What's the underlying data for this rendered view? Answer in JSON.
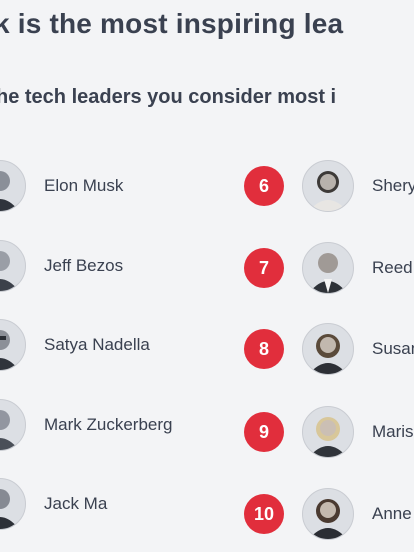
{
  "header": {
    "title": "k is the most inspiring lea",
    "subtitle": "he tech leaders you consider most i"
  },
  "chart_data": {
    "type": "table",
    "columns": [
      "rank",
      "name"
    ],
    "rows": [
      {
        "rank": "",
        "name": "Elon Musk"
      },
      {
        "rank": "",
        "name": "Jeff Bezos"
      },
      {
        "rank": "",
        "name": "Satya Nadella"
      },
      {
        "rank": "",
        "name": "Mark Zuckerberg"
      },
      {
        "rank": "",
        "name": "Jack Ma"
      },
      {
        "rank": "6",
        "name": "Shery"
      },
      {
        "rank": "7",
        "name": "Reed"
      },
      {
        "rank": "8",
        "name": "Susan"
      },
      {
        "rank": "9",
        "name": "Maris"
      },
      {
        "rank": "10",
        "name": "Anne"
      }
    ]
  },
  "colors": {
    "accent": "#e12e3c",
    "background": "#f3f4f6",
    "text": "#3a4150"
  }
}
